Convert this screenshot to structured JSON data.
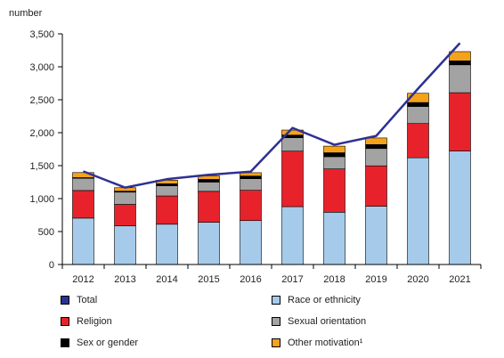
{
  "chart_data": {
    "type": "bar",
    "stacked": true,
    "ylabel": "number",
    "ylim": [
      0,
      3500
    ],
    "yticks": [
      0,
      500,
      1000,
      1500,
      2000,
      2500,
      3000,
      3500
    ],
    "ytick_labels": [
      "0",
      "500",
      "1,000",
      "1,500",
      "2,000",
      "2,500",
      "3,000",
      "3,500"
    ],
    "categories": [
      "2012",
      "2013",
      "2014",
      "2015",
      "2016",
      "2017",
      "2018",
      "2019",
      "2020",
      "2021"
    ],
    "series": [
      {
        "name": "Race or ethnicity",
        "color": "#a6cbea",
        "values": [
          704,
          585,
          611,
          641,
          666,
          878,
          793,
          884,
          1619,
          1723
        ]
      },
      {
        "name": "Religion",
        "color": "#e8222b",
        "values": [
          419,
          327,
          429,
          469,
          460,
          842,
          657,
          613,
          520,
          884
        ]
      },
      {
        "name": "Sexual orientation",
        "color": "#a3a3a3",
        "values": [
          185,
          186,
          155,
          141,
          176,
          204,
          186,
          263,
          259,
          423
        ]
      },
      {
        "name": "Sex or gender",
        "color": "#000000",
        "values": [
          10,
          15,
          30,
          40,
          40,
          40,
          60,
          60,
          60,
          60
        ]
      },
      {
        "name": "Other motivation¹",
        "color": "#f5a21b",
        "values": [
          77,
          52,
          54,
          54,
          51,
          76,
          100,
          100,
          140,
          140
        ]
      }
    ],
    "line": {
      "name": "Total",
      "color": "#2e3192",
      "values": [
        1414,
        1167,
        1295,
        1362,
        1409,
        2073,
        1817,
        1951,
        2669,
        3360
      ]
    },
    "grid": false
  },
  "legend": [
    {
      "name": "Total",
      "color": "#2e3192",
      "kind": "line"
    },
    {
      "name": "Race or ethnicity",
      "color": "#a6cbea",
      "kind": "box"
    },
    {
      "name": "Religion",
      "color": "#e8222b",
      "kind": "box"
    },
    {
      "name": "Sexual orientation",
      "color": "#a3a3a3",
      "kind": "box"
    },
    {
      "name": "Sex or gender",
      "color": "#000000",
      "kind": "box"
    },
    {
      "name": "Other motivation¹",
      "color": "#f5a21b",
      "kind": "box"
    }
  ]
}
